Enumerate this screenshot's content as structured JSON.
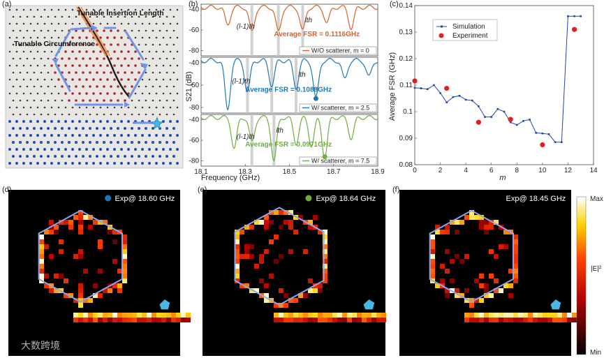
{
  "panel_labels": [
    "(a)",
    "(b)",
    "(c)",
    "(d)",
    "(e)",
    "(f)"
  ],
  "panel_a": {
    "labels": {
      "insertion": "Tunable Insertion Length",
      "circumference": "Tunable Circumference"
    },
    "colors": {
      "background": "#e9e7e3",
      "red": "#b3262b",
      "blue": "#1f4fbf",
      "grey": "#3b3b3b",
      "arrow": "#6f95e8",
      "star": "#49b7e6"
    }
  },
  "panel_b": {
    "xlim": [
      18.1,
      18.9
    ],
    "xticks": [
      "18.1",
      "18.3",
      "18.5",
      "18.7",
      "18.9"
    ],
    "xlabel": "Frequency (GHz)",
    "ylabel": "S21 (dB)",
    "yticks": [
      "-40",
      "-60",
      "-80"
    ],
    "subplots": [
      {
        "name": "wo",
        "color": "#d8622a",
        "fsr": "Average FSR = 0.1116GHz",
        "legend": "W/O scatterer, m = 0",
        "mode_left": "(l-1)th",
        "mode_right": "lth",
        "gray_lines": [
          18.33,
          18.45,
          18.56
        ],
        "dips": [
          [
            18.22,
            -55
          ],
          [
            18.33,
            -62
          ],
          [
            18.45,
            -62
          ],
          [
            18.56,
            -61
          ],
          [
            18.67,
            -53
          ],
          [
            18.78,
            -58
          ]
        ]
      },
      {
        "name": "w25",
        "color": "#1c78b5",
        "fsr": "Average FSR = 0.1088GHz",
        "legend": "W/ scatterer, m = 2.5",
        "mode_left": "(l-1)th",
        "mode_right": "lth",
        "gray_lines": [
          18.31,
          18.42,
          18.53
        ],
        "dips": [
          [
            18.22,
            -82
          ],
          [
            18.31,
            -66
          ],
          [
            18.42,
            -60
          ],
          [
            18.53,
            -62
          ],
          [
            18.62,
            -72
          ],
          [
            18.75,
            -55
          ],
          [
            18.86,
            -53
          ]
        ]
      },
      {
        "name": "w75",
        "color": "#6fae3c",
        "fsr": "Average FSR = 0.0971GHz",
        "legend": "W/ scatterer, m = 7.5",
        "mode_left": "(l-1)th",
        "mode_right": "lth",
        "gray_lines": [
          18.33,
          18.43
        ],
        "dips": [
          [
            18.25,
            -68
          ],
          [
            18.33,
            -62
          ],
          [
            18.43,
            -80
          ],
          [
            18.53,
            -63
          ],
          [
            18.6,
            -65
          ],
          [
            18.66,
            -76
          ],
          [
            18.78,
            -58
          ]
        ]
      }
    ]
  },
  "chart_data": {
    "type": "scatter",
    "title": "",
    "xlabel": "m",
    "ylabel": "Average FSR (GHz)",
    "xlim": [
      0,
      14
    ],
    "ylim": [
      0.08,
      0.14
    ],
    "xticks": [
      "0",
      "2",
      "4",
      "6",
      "8",
      "10",
      "12",
      "14"
    ],
    "yticks": [
      "0.08",
      "0.09",
      "0.1",
      "0.11",
      "0.12",
      "0.13",
      "0.14"
    ],
    "series": [
      {
        "name": "Simulation",
        "style": "line-marker",
        "color": "#2244aa",
        "x": [
          0,
          0.5,
          1,
          1.5,
          2,
          2.5,
          3,
          3.5,
          4,
          4.5,
          5,
          5.5,
          6,
          6.5,
          7,
          7.5,
          8,
          8.5,
          9,
          9.5,
          10,
          10.5,
          11,
          11.5,
          12,
          12.5,
          13
        ],
        "y": [
          0.109,
          0.1088,
          0.1085,
          0.11,
          0.107,
          0.1035,
          0.1055,
          0.106,
          0.1045,
          0.1042,
          0.102,
          0.098,
          0.098,
          0.101,
          0.1,
          0.096,
          0.095,
          0.0965,
          0.097,
          0.092,
          0.0918,
          0.0915,
          0.0885,
          0.0885,
          0.136,
          0.136,
          0.136
        ]
      },
      {
        "name": "Experiment",
        "style": "marker",
        "color": "#e02020",
        "x": [
          0,
          2.5,
          5,
          7.5,
          10,
          12.5
        ],
        "y": [
          0.1116,
          0.1088,
          0.096,
          0.0971,
          0.0875,
          0.131
        ]
      }
    ]
  },
  "maps": [
    {
      "label": "Exp@ 18.60 GHz",
      "dot_color": "#1c78b5"
    },
    {
      "label": "Exp@ 18.64 GHz",
      "dot_color": "#6fae3c"
    },
    {
      "label": "Exp@ 18.45 GHz",
      "dot_color": ""
    }
  ],
  "colorbar": {
    "max": "Max",
    "min": "Min",
    "quantity": "|E|²"
  },
  "watermark": "大数跨境"
}
